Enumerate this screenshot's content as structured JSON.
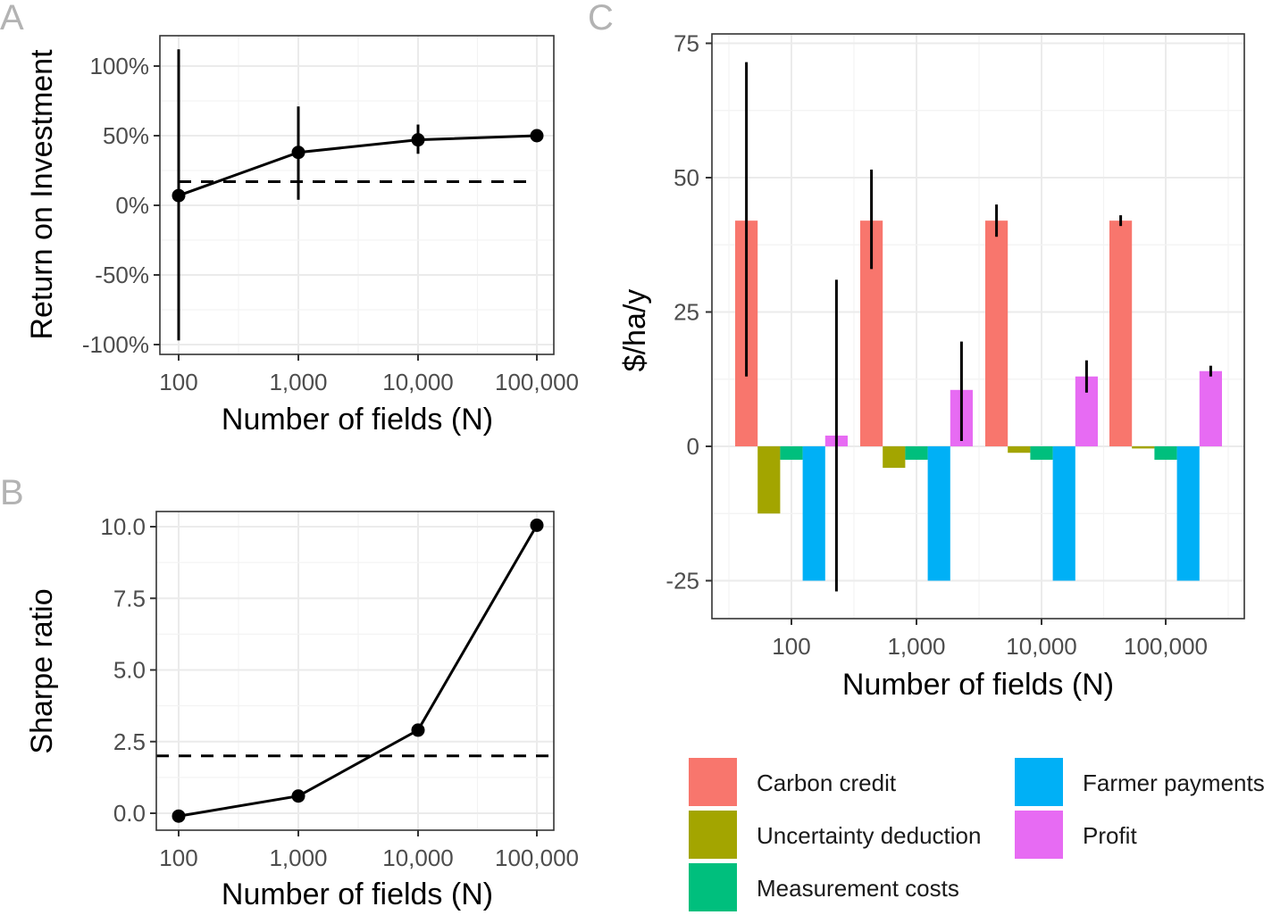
{
  "chart_data": [
    {
      "panel": "A",
      "type": "line",
      "panel_label": "A",
      "xlabel": "Number of fields (N)",
      "ylabel": "Return on Investment",
      "x_scale": "log10",
      "x": [
        100,
        1000,
        10000,
        100000
      ],
      "x_tick_labels": [
        "100",
        "1,000",
        "10,000",
        "100,000"
      ],
      "y_ticks": [
        100,
        50,
        0,
        -50,
        -100
      ],
      "y_tick_labels": [
        "100%",
        "50%",
        "0%",
        "-50%",
        "-100%"
      ],
      "ylim": [
        -107,
        122
      ],
      "series": [
        {
          "name": "ROI",
          "values": [
            7,
            38,
            47,
            50
          ],
          "error_low": [
            -97,
            4,
            37,
            50
          ],
          "error_high": [
            112,
            71,
            58,
            50
          ]
        }
      ],
      "reference_line": {
        "value": 17,
        "style": "dashed"
      },
      "grid": true
    },
    {
      "panel": "B",
      "type": "line",
      "panel_label": "B",
      "xlabel": "Number of fields (N)",
      "ylabel": "Sharpe ratio",
      "x_scale": "log10",
      "x": [
        100,
        1000,
        10000,
        100000
      ],
      "x_tick_labels": [
        "100",
        "1,000",
        "10,000",
        "100,000"
      ],
      "y_ticks": [
        10.0,
        7.5,
        5.0,
        2.5,
        0.0
      ],
      "y_tick_labels": [
        "10.0",
        "7.5",
        "5.0",
        "2.5",
        "0.0"
      ],
      "ylim": [
        -0.6,
        10.5
      ],
      "series": [
        {
          "name": "Sharpe ratio",
          "values": [
            -0.1,
            0.6,
            2.9,
            10.05
          ]
        }
      ],
      "reference_line": {
        "value": 2.0,
        "style": "dashed"
      },
      "grid": true
    },
    {
      "panel": "C",
      "type": "bar",
      "panel_label": "C",
      "xlabel": "Number of fields (N)",
      "ylabel": "$/ha/y",
      "categories": [
        "100",
        "1,000",
        "10,000",
        "100,000"
      ],
      "y_ticks": [
        75,
        50,
        25,
        0,
        -25
      ],
      "y_tick_labels": [
        "75",
        "50",
        "25",
        "0",
        "-25"
      ],
      "ylim": [
        -32,
        77
      ],
      "series": [
        {
          "name": "Carbon credit",
          "color": "#F8766D",
          "values": [
            42,
            42,
            42,
            42
          ],
          "error_low": [
            13,
            33,
            39,
            41
          ],
          "error_high": [
            71.5,
            51.5,
            45,
            43
          ]
        },
        {
          "name": "Uncertainty deduction",
          "color": "#A3A500",
          "values": [
            -12.5,
            -4,
            -1.2,
            -0.4
          ]
        },
        {
          "name": "Measurement costs",
          "color": "#00BF7D",
          "values": [
            -2.5,
            -2.5,
            -2.5,
            -2.5
          ]
        },
        {
          "name": "Farmer payments",
          "color": "#00B0F6",
          "values": [
            -25,
            -25,
            -25,
            -25
          ]
        },
        {
          "name": "Profit",
          "color": "#E76BF3",
          "values": [
            2,
            10.5,
            13,
            14
          ],
          "error_low": [
            -27,
            1,
            10,
            13
          ],
          "error_high": [
            31,
            19.5,
            16,
            15
          ]
        }
      ],
      "legend": {
        "position": "bottom",
        "columns": 2
      },
      "grid": true
    }
  ]
}
